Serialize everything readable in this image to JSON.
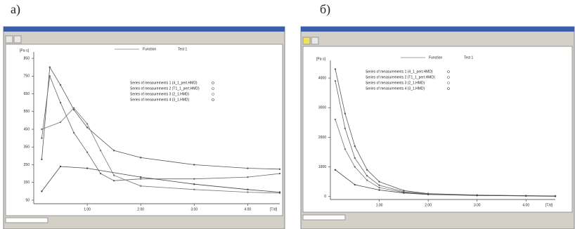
{
  "chart_data": [
    {
      "type": "line",
      "label": "а)",
      "header": "Function",
      "test": "Test 1",
      "ylabel": "[Pa·s]",
      "xlabel": "[T/d]",
      "xlim": [
        0,
        4.6
      ],
      "ylim": [
        30,
        870
      ],
      "xticks": [
        {
          "value": 1,
          "label": "1.00"
        },
        {
          "value": 2,
          "label": "2.00"
        },
        {
          "value": 3,
          "label": "3.00"
        },
        {
          "value": 4,
          "label": "4.00"
        }
      ],
      "yticks": [
        50,
        150,
        250,
        350,
        450,
        550,
        650,
        750,
        850
      ],
      "legend": "upper center",
      "series": [
        {
          "name": "Series of measurements 1 (4_1_pert.HMD)",
          "color": "#555555",
          "x": [
            0.15,
            0.3,
            0.5,
            0.75,
            1.0,
            1.5,
            2.0,
            3.0,
            4.0,
            4.6
          ],
          "values": [
            280,
            800,
            700,
            560,
            460,
            330,
            290,
            250,
            230,
            225
          ]
        },
        {
          "name": "Series of measurements 2 (T1_1_pert.HMD)",
          "color": "#666666",
          "x": [
            0.15,
            0.3,
            0.5,
            0.75,
            1.0,
            1.25,
            1.5,
            2.0,
            3.0,
            4.0,
            4.6
          ],
          "values": [
            400,
            750,
            600,
            430,
            320,
            200,
            160,
            170,
            170,
            180,
            200
          ]
        },
        {
          "name": "Series of measurements 3 (2_1.HMD)",
          "color": "#777777",
          "x": [
            0.15,
            0.5,
            0.75,
            1.0,
            1.25,
            1.5,
            2.0,
            3.0,
            4.0,
            4.6
          ],
          "values": [
            450,
            490,
            570,
            480,
            330,
            190,
            130,
            110,
            95,
            90
          ]
        },
        {
          "name": "Series of measurements 4 (3_1.HMD)",
          "color": "#444444",
          "x": [
            0.15,
            0.5,
            1.0,
            2.0,
            3.0,
            4.0,
            4.6
          ],
          "values": [
            100,
            240,
            230,
            180,
            140,
            110,
            95
          ]
        }
      ]
    },
    {
      "type": "line",
      "label": "б)",
      "header": "Function",
      "test": "Test 1",
      "ylabel": "[Pa·s]",
      "xlabel": "[T/d]",
      "xlim": [
        0,
        4.6
      ],
      "ylim": [
        -100,
        4500
      ],
      "xticks": [
        {
          "value": 1,
          "label": "1.00"
        },
        {
          "value": 2,
          "label": "2.00"
        },
        {
          "value": 3,
          "label": "3.00"
        },
        {
          "value": 4,
          "label": "4.00"
        }
      ],
      "yticks": [
        0,
        1000,
        2000,
        3000,
        4000
      ],
      "legend": "upper center",
      "series": [
        {
          "name": "Series of measurements 1 (4_1_pert.HMD)",
          "color": "#555555",
          "x": [
            0.1,
            0.3,
            0.5,
            0.75,
            1.0,
            1.5,
            2.0,
            3.0,
            4.0,
            4.6
          ],
          "values": [
            4300,
            2800,
            1700,
            900,
            500,
            200,
            100,
            50,
            30,
            20
          ]
        },
        {
          "name": "Series of measurements 2 (T1_1_pert.HMD)",
          "color": "#666666",
          "x": [
            0.1,
            0.3,
            0.5,
            0.75,
            1.0,
            1.5,
            2.0,
            3.0,
            4.0,
            4.6
          ],
          "values": [
            3900,
            2300,
            1300,
            700,
            380,
            160,
            90,
            45,
            25,
            15
          ]
        },
        {
          "name": "Series of measurements 3 (2_1.HMD)",
          "color": "#777777",
          "x": [
            0.1,
            0.3,
            0.5,
            0.75,
            1.0,
            1.5,
            2.0,
            3.0,
            4.0,
            4.6
          ],
          "values": [
            2600,
            1600,
            1000,
            550,
            300,
            140,
            80,
            40,
            20,
            10
          ]
        },
        {
          "name": "Series of measurements 4 (3_1.HMD)",
          "color": "#444444",
          "x": [
            0.1,
            0.5,
            1.0,
            1.5,
            2.0,
            3.0,
            4.0,
            4.6
          ],
          "values": [
            900,
            400,
            220,
            120,
            70,
            35,
            20,
            10
          ]
        }
      ]
    }
  ]
}
